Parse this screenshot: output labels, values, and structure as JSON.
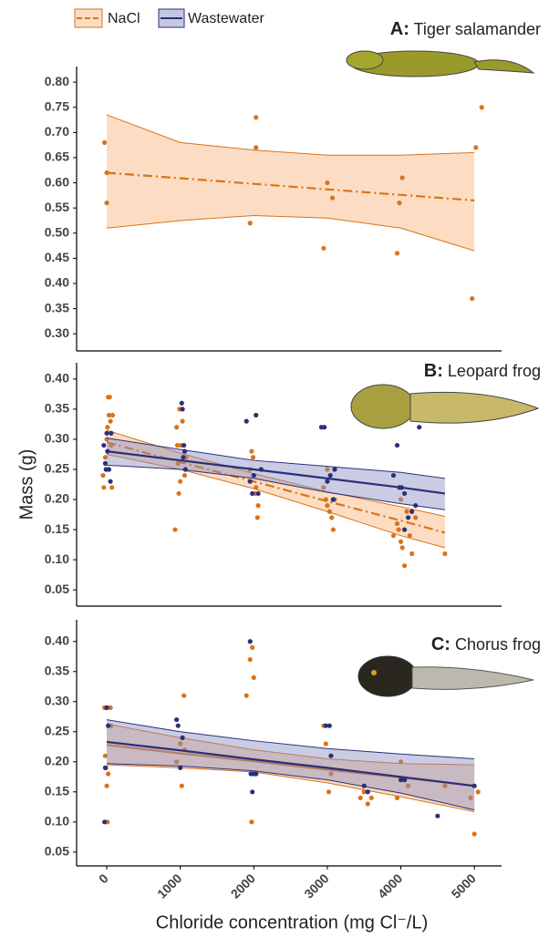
{
  "chart_data": [
    {
      "type": "scatter",
      "label": "A:",
      "title": "Tiger salamander",
      "xlim": [
        -410,
        5370
      ],
      "ylim": [
        0.266,
        0.831
      ],
      "yticks": [
        {
          "value": 0.3,
          "label": "0.30"
        },
        {
          "value": 0.35,
          "label": "0.35"
        },
        {
          "value": 0.4,
          "label": "0.40"
        },
        {
          "value": 0.45,
          "label": "0.45"
        },
        {
          "value": 0.5,
          "label": "0.50"
        },
        {
          "value": 0.55,
          "label": "0.55"
        },
        {
          "value": 0.6,
          "label": "0.60"
        },
        {
          "value": 0.65,
          "label": "0.65"
        },
        {
          "value": 0.7,
          "label": "0.70"
        },
        {
          "value": 0.75,
          "label": "0.75"
        },
        {
          "value": 0.8,
          "label": "0.80"
        }
      ],
      "series": [
        {
          "color": "#d9731a",
          "band_color": "#f9b47a",
          "linestyle": "dashdot",
          "x": [
            -30,
            0,
            0,
            1950,
            2030,
            2030,
            2950,
            3000,
            3070,
            3950,
            3980,
            4020,
            4970,
            5020,
            5100
          ],
          "values": [
            0.68,
            0.62,
            0.56,
            0.52,
            0.73,
            0.67,
            0.47,
            0.6,
            0.57,
            0.46,
            0.56,
            0.61,
            0.37,
            0.67,
            0.75
          ],
          "fit": {
            "x": [
              0,
              1000,
              2000,
              3000,
              4000,
              5000
            ],
            "values": [
              0.62,
              0.609,
              0.598,
              0.587,
              0.576,
              0.565
            ],
            "lower": [
              0.51,
              0.525,
              0.535,
              0.53,
              0.51,
              0.465
            ],
            "upper": [
              0.735,
              0.68,
              0.665,
              0.655,
              0.655,
              0.66
            ]
          }
        }
      ]
    },
    {
      "type": "scatter",
      "label": "B:",
      "title": "Leopard frog",
      "ylabel": "Mass (g)",
      "xlim": [
        -410,
        5370
      ],
      "ylim": [
        0.023,
        0.427
      ],
      "yticks": [
        {
          "value": 0.05,
          "label": "0.05"
        },
        {
          "value": 0.1,
          "label": "0.10"
        },
        {
          "value": 0.15,
          "label": "0.15"
        },
        {
          "value": 0.2,
          "label": "0.20"
        },
        {
          "value": 0.25,
          "label": "0.25"
        },
        {
          "value": 0.3,
          "label": "0.30"
        },
        {
          "value": 0.35,
          "label": "0.35"
        },
        {
          "value": 0.4,
          "label": "0.40"
        }
      ],
      "series": [
        {
          "name": "NaCl",
          "color": "#d9731a",
          "band_color": "#f9b47a",
          "linestyle": "dashdot",
          "x": [
            -50,
            -40,
            -20,
            0,
            10,
            20,
            30,
            40,
            50,
            60,
            70,
            80,
            20,
            930,
            950,
            960,
            970,
            980,
            990,
            1000,
            1010,
            1030,
            1060,
            1080,
            1950,
            1970,
            1990,
            2030,
            2050,
            2060,
            2000,
            2020,
            2950,
            2980,
            3000,
            3030,
            3060,
            3080,
            3000,
            3100,
            3900,
            3950,
            3970,
            4000,
            4020,
            4050,
            4080,
            4120,
            4150,
            4200,
            4000,
            4600
          ],
          "values": [
            0.24,
            0.22,
            0.27,
            0.3,
            0.32,
            0.37,
            0.34,
            0.37,
            0.33,
            0.29,
            0.22,
            0.34,
            0.25,
            0.15,
            0.32,
            0.29,
            0.26,
            0.21,
            0.35,
            0.23,
            0.29,
            0.33,
            0.24,
            0.27,
            0.25,
            0.28,
            0.27,
            0.22,
            0.17,
            0.19,
            0.24,
            0.21,
            0.22,
            0.2,
            0.25,
            0.18,
            0.17,
            0.15,
            0.19,
            0.2,
            0.14,
            0.16,
            0.15,
            0.13,
            0.12,
            0.09,
            0.18,
            0.14,
            0.11,
            0.17,
            0.2,
            0.11
          ],
          "fit": {
            "x": [
              0,
              1000,
              2000,
              3000,
              4000,
              4600
            ],
            "values": [
              0.295,
              0.262,
              0.23,
              0.197,
              0.165,
              0.145
            ],
            "lower": [
              0.275,
              0.25,
              0.218,
              0.18,
              0.14,
              0.12
            ],
            "upper": [
              0.315,
              0.277,
              0.243,
              0.213,
              0.188,
              0.172
            ]
          }
        },
        {
          "name": "Wastewater",
          "color": "#2b2f7a",
          "band_color": "#8a8fc0",
          "linestyle": "solid",
          "x": [
            -40,
            -20,
            0,
            10,
            30,
            50,
            60,
            -10,
            1020,
            1030,
            1050,
            1060,
            1070,
            1040,
            1900,
            1950,
            2000,
            2030,
            2060,
            2100,
            1980,
            2920,
            2960,
            3000,
            3040,
            3080,
            3100,
            3900,
            3950,
            3980,
            4010,
            4050,
            4100,
            4150,
            4200,
            4250,
            4050
          ],
          "values": [
            0.29,
            0.26,
            0.31,
            0.28,
            0.25,
            0.23,
            0.31,
            0.25,
            0.36,
            0.35,
            0.29,
            0.28,
            0.25,
            0.27,
            0.33,
            0.23,
            0.24,
            0.34,
            0.21,
            0.25,
            0.21,
            0.32,
            0.32,
            0.23,
            0.24,
            0.2,
            0.25,
            0.24,
            0.29,
            0.22,
            0.22,
            0.21,
            0.17,
            0.18,
            0.19,
            0.32,
            0.15
          ],
          "fit": {
            "x": [
              0,
              1000,
              2000,
              3000,
              4000,
              4600
            ],
            "values": [
              0.28,
              0.265,
              0.25,
              0.235,
              0.22,
              0.21
            ],
            "lower": [
              0.257,
              0.25,
              0.235,
              0.212,
              0.193,
              0.183
            ],
            "upper": [
              0.302,
              0.283,
              0.265,
              0.255,
              0.245,
              0.235
            ]
          }
        }
      ]
    },
    {
      "type": "scatter",
      "label": "C:",
      "title": "Chorus frog",
      "xlabel": "Chloride concentration (mg Cl⁻/L)",
      "xlim": [
        -410,
        5370
      ],
      "ylim": [
        0.027,
        0.436
      ],
      "xticks": [
        0,
        1000,
        2000,
        3000,
        4000,
        5000
      ],
      "yticks": [
        {
          "value": 0.05,
          "label": "0.05"
        },
        {
          "value": 0.1,
          "label": "0.10"
        },
        {
          "value": 0.15,
          "label": "0.15"
        },
        {
          "value": 0.2,
          "label": "0.20"
        },
        {
          "value": 0.25,
          "label": "0.25"
        },
        {
          "value": 0.3,
          "label": "0.30"
        },
        {
          "value": 0.35,
          "label": "0.35"
        },
        {
          "value": 0.4,
          "label": "0.40"
        }
      ],
      "series": [
        {
          "color": "#d9731a",
          "band_color": "#f9b47a",
          "linestyle": "solid",
          "x": [
            -30,
            -20,
            -10,
            0,
            10,
            20,
            50,
            60,
            950,
            1000,
            1020,
            1050,
            1060,
            1900,
            1950,
            1970,
            1980,
            2000,
            2030,
            2950,
            2980,
            3020,
            3050,
            3450,
            3500,
            3550,
            3600,
            3950,
            4000,
            4050,
            4100,
            4600,
            4950,
            5000,
            5050
          ],
          "values": [
            0.29,
            0.21,
            0.19,
            0.16,
            0.1,
            0.18,
            0.29,
            0.26,
            0.2,
            0.23,
            0.16,
            0.31,
            0.22,
            0.31,
            0.37,
            0.1,
            0.39,
            0.34,
            0.18,
            0.26,
            0.23,
            0.15,
            0.18,
            0.14,
            0.15,
            0.13,
            0.14,
            0.14,
            0.2,
            0.17,
            0.16,
            0.16,
            0.14,
            0.08,
            0.15
          ],
          "fit": {
            "x": [
              0,
              1000,
              2000,
              3000,
              4000,
              5000
            ],
            "values": [
              0.228,
              0.214,
              0.201,
              0.187,
              0.174,
              0.16
            ],
            "lower": [
              0.195,
              0.19,
              0.183,
              0.165,
              0.142,
              0.117
            ],
            "upper": [
              0.263,
              0.24,
              0.22,
              0.205,
              0.197,
              0.195
            ]
          }
        },
        {
          "color": "#2b2f7a",
          "band_color": "#8a8fc0",
          "linestyle": "solid",
          "x": [
            -30,
            -20,
            0,
            20,
            950,
            970,
            1000,
            1030,
            1950,
            1960,
            1980,
            2000,
            2030,
            2980,
            3030,
            3050,
            3500,
            3550,
            4000,
            4050,
            4500,
            5000
          ],
          "values": [
            0.1,
            0.19,
            0.29,
            0.26,
            0.27,
            0.26,
            0.19,
            0.24,
            0.4,
            0.18,
            0.15,
            0.18,
            0.18,
            0.26,
            0.26,
            0.21,
            0.16,
            0.15,
            0.17,
            0.17,
            0.11,
            0.16
          ],
          "fit": {
            "x": [
              0,
              1000,
              2000,
              3000,
              4000,
              5000
            ],
            "values": [
              0.233,
              0.219,
              0.204,
              0.19,
              0.175,
              0.16
            ],
            "lower": [
              0.197,
              0.193,
              0.185,
              0.17,
              0.148,
              0.12
            ],
            "upper": [
              0.27,
              0.25,
              0.235,
              0.222,
              0.213,
              0.205
            ]
          }
        }
      ]
    }
  ]
}
